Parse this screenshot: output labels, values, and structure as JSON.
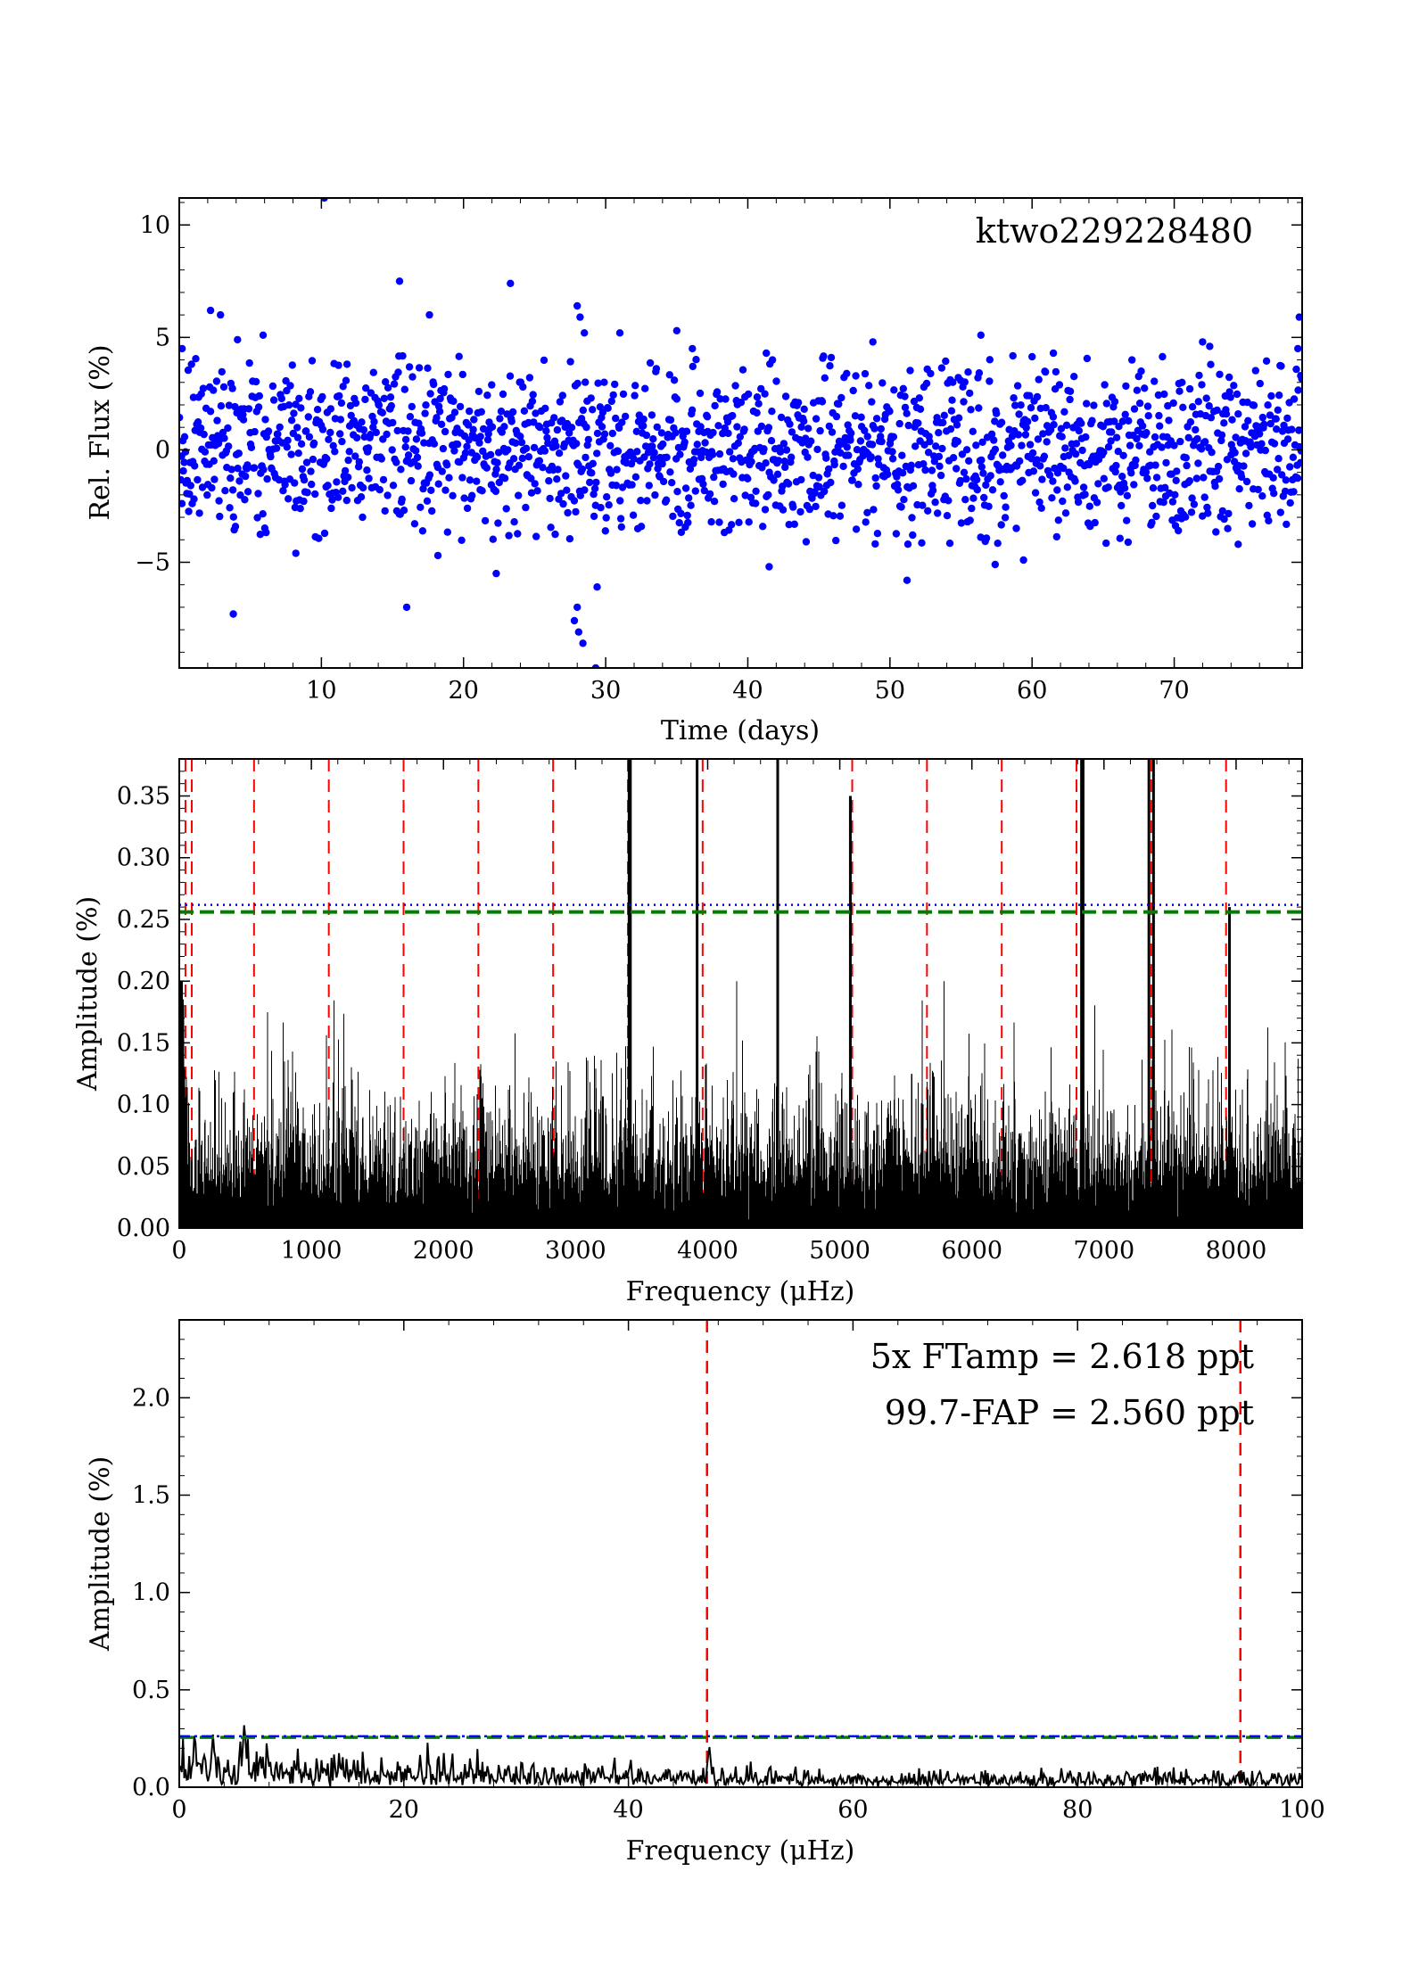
{
  "chart_data": [
    {
      "type": "scatter",
      "annotation": {
        "text": "ktwo229228480",
        "color": "#ff0000"
      },
      "xlabel": "Time (days)",
      "ylabel": "Rel. Flux (%)",
      "xlim": [
        0,
        79
      ],
      "ylim": [
        -9.7,
        11.2
      ],
      "xticks": [
        10,
        20,
        30,
        40,
        50,
        60,
        70
      ],
      "yticks": [
        -5,
        0,
        5,
        10
      ],
      "ytick_labels": [
        "−5",
        "0",
        "5",
        "10"
      ],
      "point_color": "#0000ff",
      "n_points": 1700,
      "scatter_sigma": 1.9,
      "outliers": [
        [
          10.2,
          11.2
        ],
        [
          2.2,
          6.2
        ],
        [
          2.9,
          6.0
        ],
        [
          5.9,
          5.1
        ],
        [
          4.1,
          4.9
        ],
        [
          15.5,
          7.5
        ],
        [
          17.6,
          6.0
        ],
        [
          16.0,
          -7.0
        ],
        [
          3.8,
          -7.3
        ],
        [
          8.2,
          -4.6
        ],
        [
          23.3,
          7.4
        ],
        [
          22.3,
          -5.5
        ],
        [
          28.0,
          6.4
        ],
        [
          28.2,
          5.9
        ],
        [
          28.5,
          5.2
        ],
        [
          28.0,
          -7.0
        ],
        [
          27.8,
          -7.6
        ],
        [
          28.1,
          -8.1
        ],
        [
          28.4,
          -8.6
        ],
        [
          29.4,
          -6.1
        ],
        [
          29.3,
          -9.7
        ],
        [
          31.0,
          5.2
        ],
        [
          35.0,
          5.3
        ],
        [
          36.1,
          4.5
        ],
        [
          41.3,
          4.3
        ],
        [
          41.5,
          -5.2
        ],
        [
          48.8,
          4.8
        ],
        [
          51.2,
          -5.8
        ],
        [
          56.4,
          5.1
        ],
        [
          57.4,
          -5.1
        ],
        [
          59.4,
          -4.9
        ],
        [
          61.5,
          4.3
        ],
        [
          72.0,
          4.8
        ],
        [
          72.5,
          4.6
        ],
        [
          74.5,
          -4.2
        ],
        [
          78.8,
          5.9
        ],
        [
          78.7,
          4.5
        ],
        [
          78.9,
          3.3
        ],
        [
          0.2,
          4.5
        ],
        [
          18.2,
          -4.7
        ]
      ]
    },
    {
      "type": "line",
      "xlabel": "Frequency (μHz)",
      "ylabel": "Amplitude (%)",
      "xlim": [
        0,
        8500
      ],
      "ylim": [
        0,
        0.38
      ],
      "xticks": [
        0,
        1000,
        2000,
        3000,
        4000,
        5000,
        6000,
        7000,
        8000
      ],
      "yticks": [
        0.0,
        0.05,
        0.1,
        0.15,
        0.2,
        0.25,
        0.3,
        0.35
      ],
      "ytick_labels": [
        "0.00",
        "0.05",
        "0.10",
        "0.15",
        "0.20",
        "0.25",
        "0.30",
        "0.35"
      ],
      "noise_level": 0.065,
      "noise_max": 0.2,
      "low_freq_rise": {
        "below": 60,
        "peak": 0.31
      },
      "peaks": [
        {
          "x": 3405,
          "y": 0.38
        },
        {
          "x": 3415,
          "y": 0.38
        },
        {
          "x": 3920,
          "y": 0.38
        },
        {
          "x": 4530,
          "y": 0.38
        },
        {
          "x": 5080,
          "y": 0.35
        },
        {
          "x": 6830,
          "y": 0.38
        },
        {
          "x": 6842,
          "y": 0.38
        },
        {
          "x": 7340,
          "y": 0.38
        },
        {
          "x": 7375,
          "y": 0.38
        },
        {
          "x": 7950,
          "y": 0.26
        }
      ],
      "harmonic_lines": {
        "color": "#ff0000",
        "style": "dashed",
        "x": [
          47,
          94.5,
          566,
          1132,
          1698,
          2264,
          2830,
          3396,
          3962,
          4528,
          5094,
          5660,
          6226,
          6792,
          7358,
          7924
        ]
      },
      "threshold_5x_ftamp": {
        "y": 0.2618,
        "color": "#0000ff",
        "style": "dotted"
      },
      "threshold_fap": {
        "y": 0.256,
        "color": "#008000",
        "style": "dashed"
      }
    },
    {
      "type": "line",
      "xlabel": "Frequency (μHz)",
      "ylabel": "Amplitude (%)",
      "xlim": [
        0,
        100
      ],
      "ylim": [
        0,
        2.4
      ],
      "xticks": [
        0,
        20,
        40,
        60,
        80,
        100
      ],
      "yticks": [
        0.0,
        0.5,
        1.0,
        1.5,
        2.0
      ],
      "ytick_labels": [
        "0.0",
        "0.5",
        "1.0",
        "1.5",
        "2.0"
      ],
      "noise_level": 0.12,
      "decay_to": 0.05,
      "peaks": [
        {
          "x": 3.0,
          "y": 0.27
        },
        {
          "x": 5.8,
          "y": 0.34
        },
        {
          "x": 47.2,
          "y": 0.22
        }
      ],
      "harmonic_lines": {
        "color": "#ff0000",
        "style": "dashed",
        "x": [
          47,
          94.5
        ]
      },
      "threshold_5x_ftamp": {
        "y": 0.2618,
        "color": "#0000ff",
        "style": "dash-dot"
      },
      "threshold_fap": {
        "y": 0.256,
        "color": "#008000",
        "style": "dashed"
      },
      "annotations": [
        {
          "text": "5x FTamp = 2.618 ppt",
          "color": "#0000ff"
        },
        {
          "text": "99.7-FAP = 2.560 ppt",
          "color": "#008000"
        }
      ]
    }
  ]
}
